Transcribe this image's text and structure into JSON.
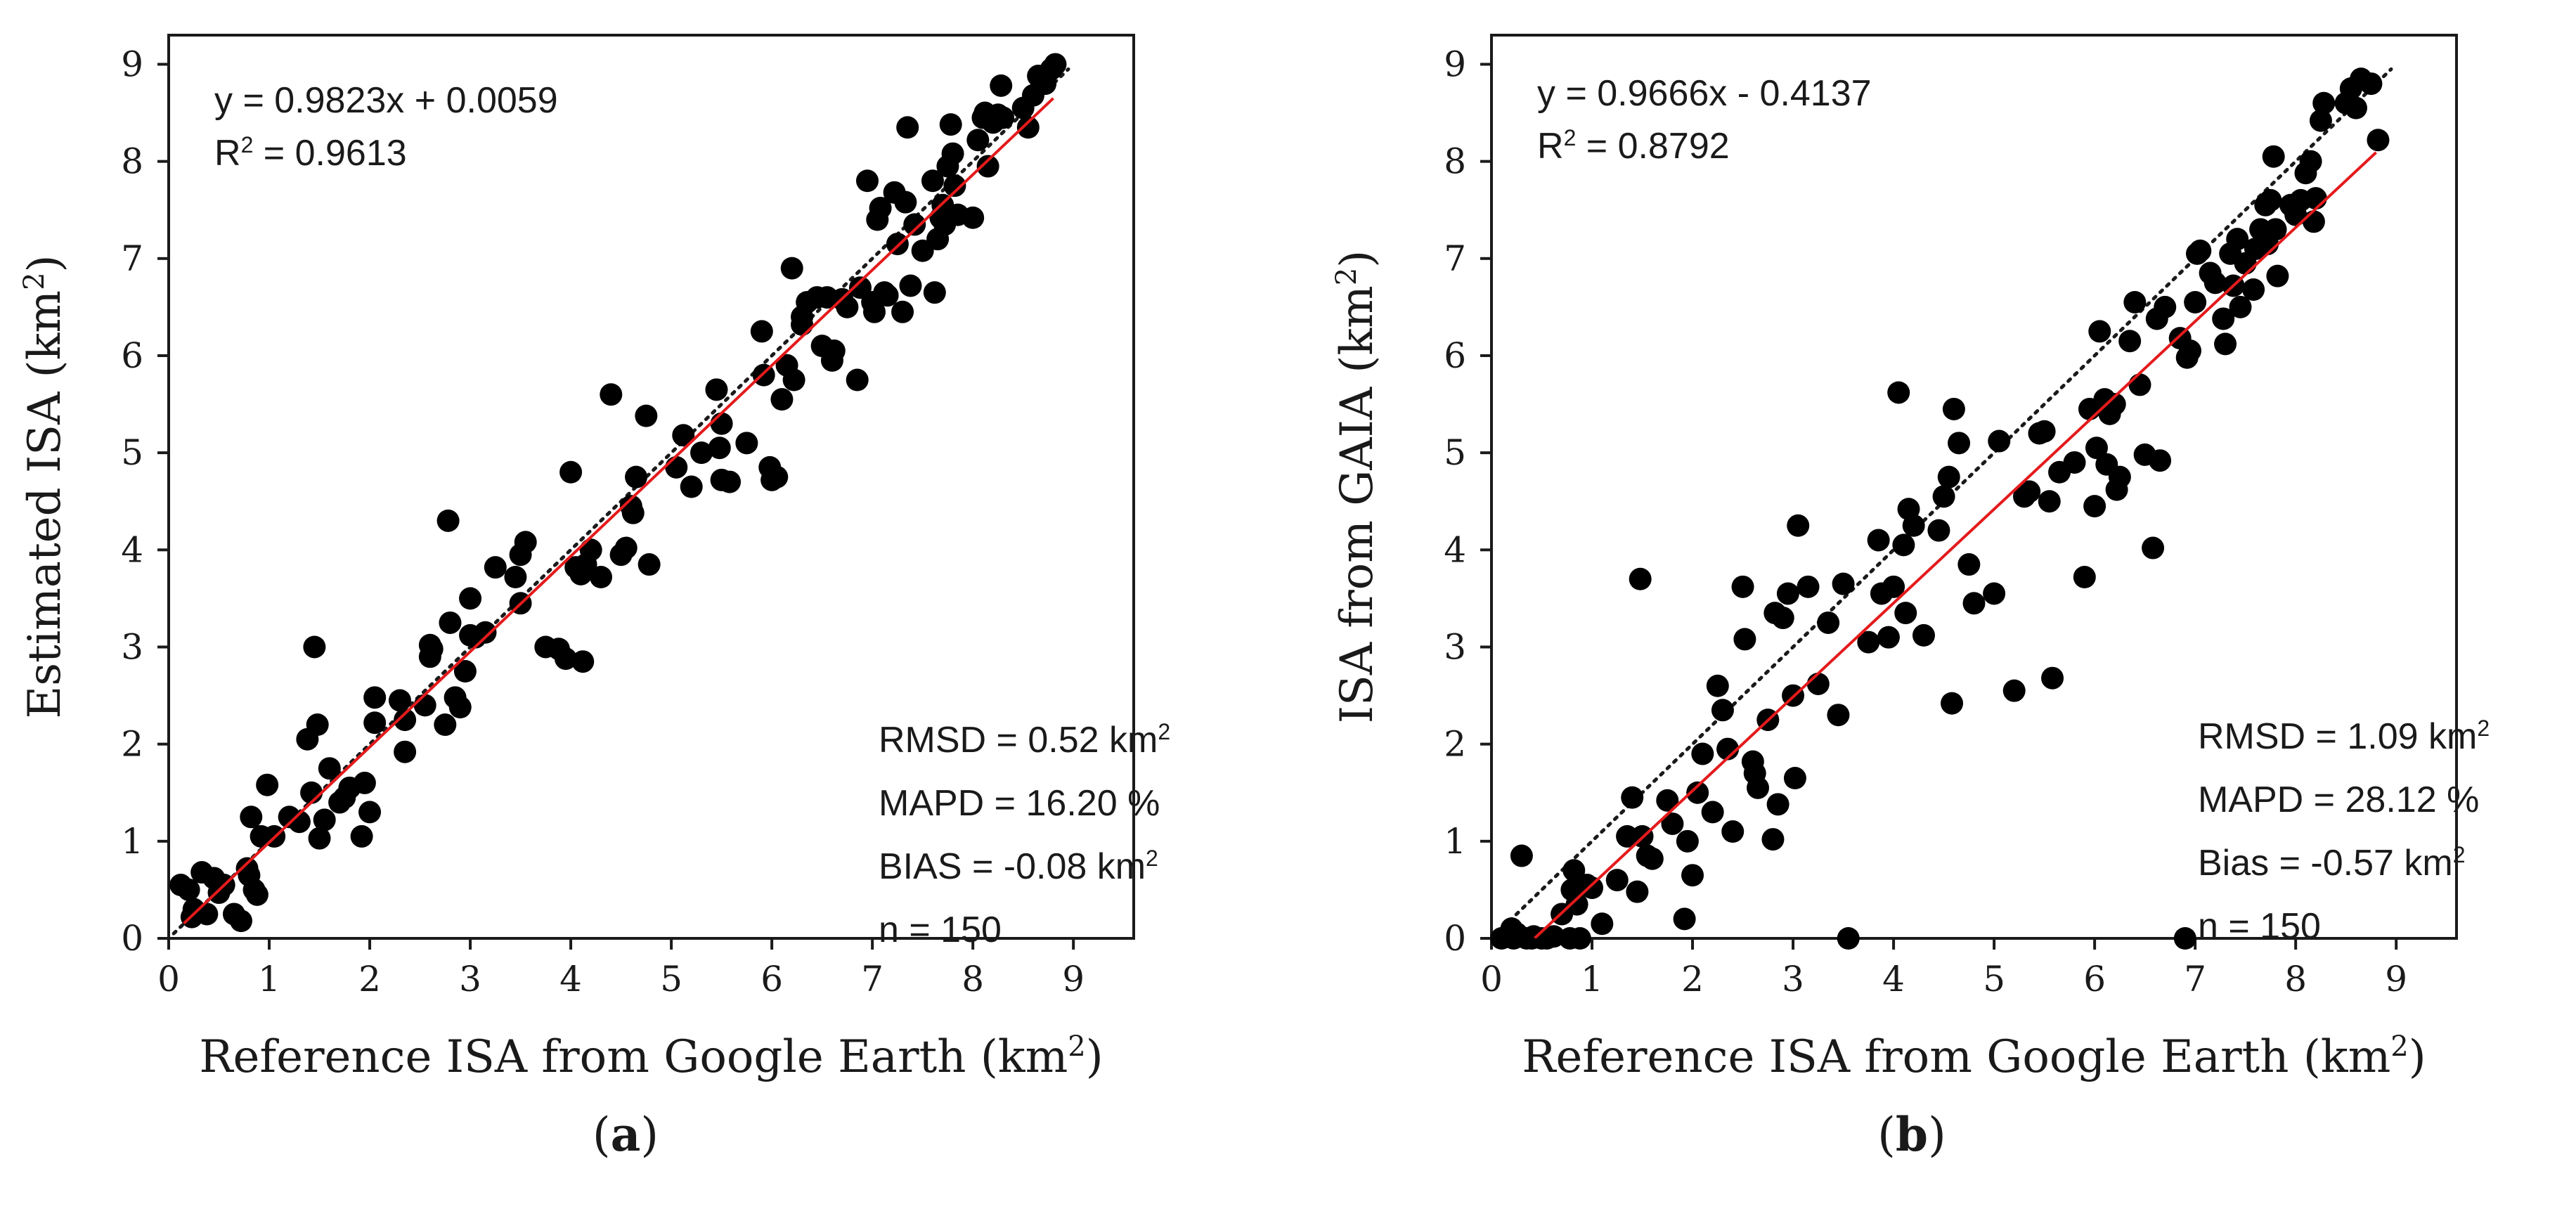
{
  "captions": [
    "(a)",
    "(b)"
  ],
  "caption_letters": [
    "a",
    "b"
  ],
  "chart_data": [
    {
      "type": "scatter",
      "panel": "a",
      "xlabel": "Reference ISA from Google Earth (km²)",
      "ylabel": "Estimated ISA (km²)",
      "xlim": [
        0,
        9.6
      ],
      "ylim": [
        0,
        9.3
      ],
      "xticks": [
        0,
        1,
        2,
        3,
        4,
        5,
        6,
        7,
        8,
        9
      ],
      "yticks": [
        0,
        1,
        2,
        3,
        4,
        5,
        6,
        7,
        8,
        9
      ],
      "equation": "y = 0.9823x + 0.0059",
      "r2": "R² = 0.9613",
      "stats": [
        "RMSD = 0.52 km²",
        "MAPD = 16.20 %",
        "BIAS = -0.08 km²",
        "n = 150"
      ],
      "fit": {
        "slope": 0.9823,
        "intercept": 0.0059,
        "x_range": [
          0.15,
          8.8
        ],
        "color": "#e41a1c"
      },
      "identity_line": {
        "x_range": [
          0.05,
          8.95
        ],
        "style": "dotted",
        "color": "#1a1a1a"
      },
      "points": [
        [
          0.12,
          0.55
        ],
        [
          0.2,
          0.5
        ],
        [
          0.23,
          0.22
        ],
        [
          0.28,
          0.26
        ],
        [
          0.33,
          0.68
        ],
        [
          0.38,
          0.25
        ],
        [
          0.45,
          0.62
        ],
        [
          0.5,
          0.47
        ],
        [
          0.55,
          0.55
        ],
        [
          0.65,
          0.25
        ],
        [
          0.72,
          0.18
        ],
        [
          0.78,
          0.72
        ],
        [
          0.8,
          0.65
        ],
        [
          0.82,
          1.25
        ],
        [
          0.85,
          0.5
        ],
        [
          0.88,
          0.45
        ],
        [
          0.92,
          1.05
        ],
        [
          0.98,
          1.58
        ],
        [
          1.05,
          1.05
        ],
        [
          1.3,
          1.2
        ],
        [
          1.38,
          2.05
        ],
        [
          1.42,
          1.5
        ],
        [
          1.45,
          3.0
        ],
        [
          1.48,
          2.2
        ],
        [
          1.5,
          1.03
        ],
        [
          1.55,
          1.22
        ],
        [
          1.6,
          1.75
        ],
        [
          1.75,
          1.45
        ],
        [
          1.8,
          1.55
        ],
        [
          1.92,
          1.05
        ],
        [
          1.95,
          1.6
        ],
        [
          2.0,
          1.3
        ],
        [
          2.05,
          2.48
        ],
        [
          2.05,
          2.22
        ],
        [
          2.3,
          2.45
        ],
        [
          2.35,
          2.25
        ],
        [
          2.35,
          1.92
        ],
        [
          2.55,
          2.4
        ],
        [
          2.6,
          3.02
        ],
        [
          2.62,
          2.98
        ],
        [
          2.75,
          2.2
        ],
        [
          2.78,
          4.3
        ],
        [
          2.8,
          3.25
        ],
        [
          2.85,
          2.48
        ],
        [
          2.9,
          2.38
        ],
        [
          2.95,
          2.75
        ],
        [
          3.0,
          3.12
        ],
        [
          3.0,
          3.5
        ],
        [
          3.05,
          3.1
        ],
        [
          3.15,
          3.15
        ],
        [
          3.25,
          3.82
        ],
        [
          3.45,
          3.72
        ],
        [
          3.5,
          3.95
        ],
        [
          3.55,
          4.08
        ],
        [
          3.75,
          3.0
        ],
        [
          3.88,
          2.98
        ],
        [
          3.95,
          2.88
        ],
        [
          4.0,
          4.8
        ],
        [
          4.05,
          3.82
        ],
        [
          4.1,
          3.75
        ],
        [
          4.12,
          2.85
        ],
        [
          4.15,
          3.85
        ],
        [
          4.3,
          3.72
        ],
        [
          4.4,
          5.6
        ],
        [
          4.5,
          3.95
        ],
        [
          4.55,
          4.02
        ],
        [
          4.6,
          4.45
        ],
        [
          4.62,
          4.38
        ],
        [
          4.65,
          4.75
        ],
        [
          4.75,
          5.38
        ],
        [
          4.78,
          3.85
        ],
        [
          5.05,
          4.85
        ],
        [
          5.12,
          5.18
        ],
        [
          5.2,
          4.65
        ],
        [
          5.3,
          5.0
        ],
        [
          5.45,
          5.65
        ],
        [
          5.48,
          5.05
        ],
        [
          5.5,
          4.72
        ],
        [
          5.58,
          4.7
        ],
        [
          5.75,
          5.1
        ],
        [
          5.9,
          6.25
        ],
        [
          5.92,
          5.8
        ],
        [
          5.98,
          4.85
        ],
        [
          6.0,
          4.72
        ],
        [
          6.05,
          4.75
        ],
        [
          6.1,
          5.55
        ],
        [
          6.15,
          5.9
        ],
        [
          6.2,
          6.9
        ],
        [
          6.22,
          5.75
        ],
        [
          6.3,
          6.32
        ],
        [
          6.35,
          6.55
        ],
        [
          6.45,
          6.6
        ],
        [
          6.5,
          6.1
        ],
        [
          6.55,
          6.6
        ],
        [
          6.6,
          5.95
        ],
        [
          6.62,
          6.05
        ],
        [
          6.7,
          6.58
        ],
        [
          6.85,
          5.75
        ],
        [
          6.88,
          6.7
        ],
        [
          6.95,
          7.8
        ],
        [
          7.0,
          6.55
        ],
        [
          7.02,
          6.45
        ],
        [
          7.05,
          7.4
        ],
        [
          7.08,
          7.52
        ],
        [
          7.12,
          6.65
        ],
        [
          7.15,
          6.62
        ],
        [
          7.22,
          7.68
        ],
        [
          7.3,
          6.45
        ],
        [
          7.33,
          7.58
        ],
        [
          7.35,
          8.35
        ],
        [
          7.38,
          6.72
        ],
        [
          7.42,
          7.35
        ],
        [
          7.5,
          7.08
        ],
        [
          7.6,
          7.8
        ],
        [
          7.62,
          6.65
        ],
        [
          7.65,
          7.2
        ],
        [
          7.68,
          7.42
        ],
        [
          7.7,
          7.55
        ],
        [
          7.72,
          7.35
        ],
        [
          7.75,
          7.95
        ],
        [
          7.78,
          8.38
        ],
        [
          7.8,
          8.08
        ],
        [
          7.82,
          7.75
        ],
        [
          7.85,
          7.45
        ],
        [
          8.0,
          7.42
        ],
        [
          8.05,
          8.22
        ],
        [
          8.1,
          8.45
        ],
        [
          8.12,
          8.5
        ],
        [
          8.2,
          8.4
        ],
        [
          8.25,
          8.48
        ],
        [
          8.28,
          8.78
        ],
        [
          8.3,
          8.45
        ],
        [
          8.55,
          8.35
        ],
        [
          8.6,
          8.68
        ],
        [
          8.65,
          8.88
        ],
        [
          8.72,
          8.8
        ],
        [
          8.78,
          8.95
        ],
        [
          8.82,
          9.0
        ],
        [
          0.25,
          0.3
        ],
        [
          1.2,
          1.25
        ],
        [
          2.6,
          2.9
        ],
        [
          3.5,
          3.45
        ],
        [
          4.2,
          4.0
        ],
        [
          5.5,
          5.3
        ],
        [
          6.3,
          6.4
        ],
        [
          6.75,
          6.5
        ],
        [
          7.25,
          7.15
        ],
        [
          8.15,
          7.95
        ],
        [
          8.5,
          8.55
        ],
        [
          1.7,
          1.4
        ]
      ]
    },
    {
      "type": "scatter",
      "panel": "b",
      "xlabel": "Reference ISA from Google Earth (km²)",
      "ylabel": "ISA from GAIA (km²)",
      "xlim": [
        0,
        9.6
      ],
      "ylim": [
        0,
        9.3
      ],
      "xticks": [
        0,
        1,
        2,
        3,
        4,
        5,
        6,
        7,
        8,
        9
      ],
      "yticks": [
        0,
        1,
        2,
        3,
        4,
        5,
        6,
        7,
        8,
        9
      ],
      "equation": "y = 0.9666x - 0.4137",
      "r2": "R² = 0.8792",
      "stats": [
        "RMSD = 1.09 km²",
        "MAPD = 28.12 %",
        "Bias = -0.57 km²",
        "n = 150"
      ],
      "fit": {
        "slope": 0.9666,
        "intercept": -0.4137,
        "x_range": [
          0.43,
          8.8
        ],
        "color": "#e41a1c"
      },
      "identity_line": {
        "x_range": [
          0.05,
          8.95
        ],
        "style": "dotted",
        "color": "#1a1a1a"
      },
      "points": [
        [
          0.1,
          0.0
        ],
        [
          0.15,
          0.02
        ],
        [
          0.2,
          0.1
        ],
        [
          0.22,
          0.0
        ],
        [
          0.25,
          0.05
        ],
        [
          0.3,
          0.85
        ],
        [
          0.35,
          0.0
        ],
        [
          0.42,
          0.02
        ],
        [
          0.5,
          0.0
        ],
        [
          0.55,
          0.0
        ],
        [
          0.62,
          0.02
        ],
        [
          0.7,
          0.25
        ],
        [
          0.78,
          0.0
        ],
        [
          0.8,
          0.5
        ],
        [
          0.82,
          0.7
        ],
        [
          0.85,
          0.35
        ],
        [
          0.88,
          0.0
        ],
        [
          0.95,
          0.55
        ],
        [
          1.0,
          0.52
        ],
        [
          1.1,
          0.15
        ],
        [
          1.35,
          1.05
        ],
        [
          1.4,
          1.45
        ],
        [
          1.45,
          0.48
        ],
        [
          1.48,
          3.7
        ],
        [
          1.5,
          1.05
        ],
        [
          1.55,
          0.85
        ],
        [
          1.6,
          0.82
        ],
        [
          1.75,
          1.42
        ],
        [
          1.8,
          1.18
        ],
        [
          1.92,
          0.2
        ],
        [
          1.95,
          1.0
        ],
        [
          2.0,
          0.65
        ],
        [
          2.05,
          1.5
        ],
        [
          2.1,
          1.9
        ],
        [
          2.25,
          2.6
        ],
        [
          2.3,
          2.35
        ],
        [
          2.35,
          1.95
        ],
        [
          2.4,
          1.1
        ],
        [
          2.5,
          3.62
        ],
        [
          2.52,
          3.08
        ],
        [
          2.6,
          1.82
        ],
        [
          2.62,
          1.7
        ],
        [
          2.65,
          1.55
        ],
        [
          2.75,
          2.25
        ],
        [
          2.8,
          1.02
        ],
        [
          2.82,
          3.35
        ],
        [
          2.85,
          1.38
        ],
        [
          2.9,
          3.3
        ],
        [
          2.95,
          3.55
        ],
        [
          3.0,
          2.5
        ],
        [
          3.02,
          1.65
        ],
        [
          3.05,
          4.25
        ],
        [
          3.15,
          3.62
        ],
        [
          3.25,
          2.62
        ],
        [
          3.45,
          2.3
        ],
        [
          3.5,
          3.65
        ],
        [
          3.55,
          0.0
        ],
        [
          3.75,
          3.05
        ],
        [
          3.85,
          4.1
        ],
        [
          3.88,
          3.55
        ],
        [
          3.95,
          3.1
        ],
        [
          4.0,
          3.62
        ],
        [
          4.05,
          5.62
        ],
        [
          4.1,
          4.05
        ],
        [
          4.12,
          3.35
        ],
        [
          4.15,
          4.42
        ],
        [
          4.2,
          4.25
        ],
        [
          4.3,
          3.12
        ],
        [
          4.45,
          4.2
        ],
        [
          4.5,
          4.55
        ],
        [
          4.55,
          4.75
        ],
        [
          4.58,
          2.42
        ],
        [
          4.6,
          5.45
        ],
        [
          4.65,
          5.1
        ],
        [
          4.75,
          3.85
        ],
        [
          4.8,
          3.45
        ],
        [
          5.0,
          3.55
        ],
        [
          5.05,
          5.12
        ],
        [
          5.2,
          2.55
        ],
        [
          5.3,
          4.55
        ],
        [
          5.45,
          5.2
        ],
        [
          5.5,
          5.22
        ],
        [
          5.55,
          4.5
        ],
        [
          5.58,
          2.68
        ],
        [
          5.65,
          4.8
        ],
        [
          5.8,
          4.9
        ],
        [
          5.9,
          3.72
        ],
        [
          5.95,
          5.45
        ],
        [
          6.0,
          4.45
        ],
        [
          6.02,
          5.05
        ],
        [
          6.05,
          6.25
        ],
        [
          6.1,
          5.55
        ],
        [
          6.12,
          4.88
        ],
        [
          6.15,
          5.4
        ],
        [
          6.2,
          5.5
        ],
        [
          6.22,
          4.62
        ],
        [
          6.25,
          4.75
        ],
        [
          6.35,
          6.15
        ],
        [
          6.4,
          6.55
        ],
        [
          6.45,
          5.7
        ],
        [
          6.5,
          4.98
        ],
        [
          6.58,
          4.02
        ],
        [
          6.62,
          6.38
        ],
        [
          6.65,
          4.92
        ],
        [
          6.7,
          6.5
        ],
        [
          6.85,
          6.18
        ],
        [
          6.9,
          0.0
        ],
        [
          6.92,
          5.98
        ],
        [
          6.95,
          6.05
        ],
        [
          7.0,
          6.55
        ],
        [
          7.02,
          7.05
        ],
        [
          7.05,
          7.08
        ],
        [
          7.15,
          6.85
        ],
        [
          7.2,
          6.75
        ],
        [
          7.28,
          6.38
        ],
        [
          7.3,
          6.12
        ],
        [
          7.35,
          7.05
        ],
        [
          7.38,
          6.72
        ],
        [
          7.42,
          7.2
        ],
        [
          7.45,
          6.5
        ],
        [
          7.5,
          6.95
        ],
        [
          7.58,
          6.68
        ],
        [
          7.65,
          7.3
        ],
        [
          7.7,
          7.55
        ],
        [
          7.72,
          7.15
        ],
        [
          7.75,
          7.6
        ],
        [
          7.78,
          8.05
        ],
        [
          7.8,
          7.3
        ],
        [
          7.82,
          6.82
        ],
        [
          7.95,
          7.55
        ],
        [
          8.0,
          7.45
        ],
        [
          8.05,
          7.6
        ],
        [
          8.1,
          7.88
        ],
        [
          8.15,
          8.0
        ],
        [
          8.18,
          7.38
        ],
        [
          8.2,
          7.62
        ],
        [
          8.25,
          8.42
        ],
        [
          8.28,
          8.6
        ],
        [
          8.5,
          8.6
        ],
        [
          8.55,
          8.75
        ],
        [
          8.6,
          8.55
        ],
        [
          8.65,
          8.85
        ],
        [
          8.75,
          8.8
        ],
        [
          8.82,
          8.22
        ],
        [
          0.4,
          0.0
        ],
        [
          1.25,
          0.6
        ],
        [
          2.2,
          1.3
        ],
        [
          3.35,
          3.25
        ],
        [
          5.35,
          4.6
        ],
        [
          7.6,
          7.1
        ]
      ]
    }
  ]
}
